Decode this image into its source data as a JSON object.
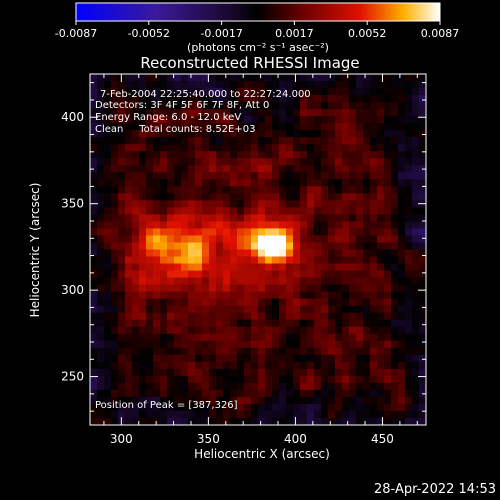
{
  "chart_data": {
    "type": "heatmap",
    "title": "Reconstructed RHESSI Image",
    "xlabel": "Heliocentric X (arcsec)",
    "ylabel": "Heliocentric Y (arcsec)",
    "xlim": [
      282,
      475
    ],
    "ylim": [
      222,
      425
    ],
    "x_ticks": [
      300,
      350,
      400,
      450
    ],
    "y_ticks": [
      250,
      300,
      350,
      400
    ],
    "colorbar": {
      "ticks": [
        "-0.0087",
        "-0.0052",
        "-0.0017",
        "0.0017",
        "0.0052",
        "0.0087"
      ],
      "range": [
        -0.0087,
        0.0087
      ],
      "unit_label": "(photons cm⁻² s⁻¹ asec⁻²)"
    },
    "info_lines": [
      "7-Feb-2004 22:25:40.000 to 22:27:24.000",
      "Detectors: 3F 4F 5F 6F 7F 8F, Att 0",
      "Energy Range: 6.0 - 12.0 keV",
      "Clean     Total counts: 8.52E+03"
    ],
    "peak_text": "Position of Peak = [387,326]",
    "peak": {
      "x": 387,
      "y": 326,
      "value": 0.0087
    },
    "secondary_source": {
      "x": 330,
      "y": 328
    },
    "colors": {
      "background": "#000000",
      "text": "#ffffff"
    }
  },
  "footer": {
    "timestamp": "28-Apr-2022 14:53"
  }
}
